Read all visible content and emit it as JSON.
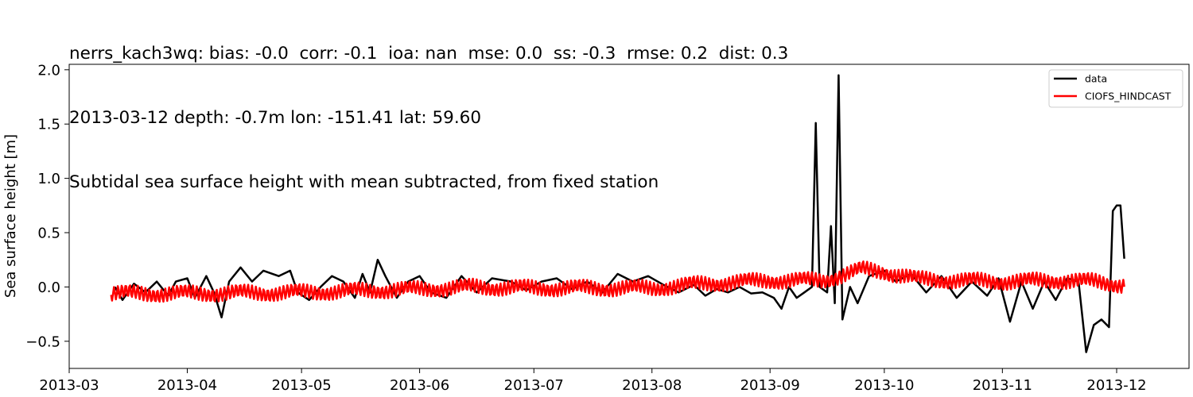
{
  "title_lines": [
    "nerrs_kach3wq: bias: -0.0  corr: -0.1  ioa: nan  mse: 0.0  ss: -0.3  rmse: 0.2  dist: 0.3",
    "2013-03-12 depth: -0.7m lon: -151.41 lat: 59.60",
    "Subtidal sea surface height with mean subtracted, from fixed station"
  ],
  "chart_data": {
    "type": "line",
    "title": "nerrs_kach3wq: bias: -0.0  corr: -0.1  ioa: nan  mse: 0.0  ss: -0.3  rmse: 0.2  dist: 0.3",
    "subtitle": "2013-03-12 depth: -0.7m lon: -151.41 lat: 59.60 | Subtidal sea surface height with mean subtracted, from fixed station",
    "xlabel": "",
    "ylabel": "Sea surface height [m]",
    "xlim": [
      "2013-03-01",
      "2013-12-20"
    ],
    "ylim": [
      -0.75,
      2.05
    ],
    "xticks": [
      "2013-03",
      "2013-04",
      "2013-05",
      "2013-06",
      "2013-07",
      "2013-08",
      "2013-09",
      "2013-10",
      "2013-11",
      "2013-12"
    ],
    "xtick_dates": [
      "2013-03-01",
      "2013-04-01",
      "2013-05-01",
      "2013-06-01",
      "2013-07-01",
      "2013-08-01",
      "2013-09-01",
      "2013-10-01",
      "2013-11-01",
      "2013-12-01"
    ],
    "yticks": [
      -0.5,
      0.0,
      0.5,
      1.0,
      1.5,
      2.0
    ],
    "ytick_labels": [
      "−0.5",
      "0.0",
      "0.5",
      "1.0",
      "1.5",
      "2.0"
    ],
    "grid": false,
    "legend_position": "top-right",
    "series": [
      {
        "name": "data",
        "color": "#000000",
        "style": "smooth, irregular",
        "points": [
          [
            "2013-03-13",
            0.0
          ],
          [
            "2013-03-15",
            -0.12
          ],
          [
            "2013-03-18",
            0.03
          ],
          [
            "2013-03-21",
            -0.05
          ],
          [
            "2013-03-24",
            0.05
          ],
          [
            "2013-03-27",
            -0.08
          ],
          [
            "2013-03-29",
            0.05
          ],
          [
            "2013-04-01",
            0.08
          ],
          [
            "2013-04-03",
            -0.1
          ],
          [
            "2013-04-06",
            0.1
          ],
          [
            "2013-04-08",
            -0.05
          ],
          [
            "2013-04-10",
            -0.28
          ],
          [
            "2013-04-12",
            0.05
          ],
          [
            "2013-04-15",
            0.18
          ],
          [
            "2013-04-18",
            0.05
          ],
          [
            "2013-04-21",
            0.15
          ],
          [
            "2013-04-25",
            0.1
          ],
          [
            "2013-04-28",
            0.15
          ],
          [
            "2013-04-30",
            -0.05
          ],
          [
            "2013-05-03",
            -0.12
          ],
          [
            "2013-05-06",
            0.0
          ],
          [
            "2013-05-09",
            0.1
          ],
          [
            "2013-05-12",
            0.05
          ],
          [
            "2013-05-15",
            -0.1
          ],
          [
            "2013-05-17",
            0.12
          ],
          [
            "2013-05-19",
            -0.05
          ],
          [
            "2013-05-21",
            0.25
          ],
          [
            "2013-05-23",
            0.1
          ],
          [
            "2013-05-26",
            -0.1
          ],
          [
            "2013-05-29",
            0.05
          ],
          [
            "2013-06-01",
            0.1
          ],
          [
            "2013-06-04",
            -0.05
          ],
          [
            "2013-06-08",
            -0.1
          ],
          [
            "2013-06-12",
            0.1
          ],
          [
            "2013-06-16",
            -0.05
          ],
          [
            "2013-06-20",
            0.08
          ],
          [
            "2013-06-25",
            0.05
          ],
          [
            "2013-06-29",
            -0.03
          ],
          [
            "2013-07-03",
            0.05
          ],
          [
            "2013-07-07",
            0.08
          ],
          [
            "2013-07-11",
            -0.02
          ],
          [
            "2013-07-15",
            0.05
          ],
          [
            "2013-07-19",
            -0.05
          ],
          [
            "2013-07-23",
            0.12
          ],
          [
            "2013-07-27",
            0.05
          ],
          [
            "2013-07-31",
            0.1
          ],
          [
            "2013-08-04",
            0.02
          ],
          [
            "2013-08-08",
            -0.05
          ],
          [
            "2013-08-12",
            0.02
          ],
          [
            "2013-08-15",
            -0.08
          ],
          [
            "2013-08-18",
            -0.02
          ],
          [
            "2013-08-21",
            -0.05
          ],
          [
            "2013-08-24",
            0.0
          ],
          [
            "2013-08-27",
            -0.06
          ],
          [
            "2013-08-30",
            -0.05
          ],
          [
            "2013-09-02",
            -0.1
          ],
          [
            "2013-09-04",
            -0.2
          ],
          [
            "2013-09-06",
            0.0
          ],
          [
            "2013-09-08",
            -0.1
          ],
          [
            "2013-09-10",
            -0.05
          ],
          [
            "2013-09-12",
            0.0
          ],
          [
            "2013-09-13",
            1.51
          ],
          [
            "2013-09-14",
            0.0
          ],
          [
            "2013-09-16",
            -0.05
          ],
          [
            "2013-09-17",
            0.56
          ],
          [
            "2013-09-18",
            -0.15
          ],
          [
            "2013-09-19",
            1.95
          ],
          [
            "2013-09-20",
            -0.3
          ],
          [
            "2013-09-22",
            0.0
          ],
          [
            "2013-09-24",
            -0.15
          ],
          [
            "2013-09-27",
            0.1
          ],
          [
            "2013-10-01",
            0.15
          ],
          [
            "2013-10-04",
            0.05
          ],
          [
            "2013-10-08",
            0.12
          ],
          [
            "2013-10-12",
            -0.05
          ],
          [
            "2013-10-16",
            0.1
          ],
          [
            "2013-10-20",
            -0.1
          ],
          [
            "2013-10-24",
            0.05
          ],
          [
            "2013-10-28",
            -0.08
          ],
          [
            "2013-10-31",
            0.08
          ],
          [
            "2013-11-03",
            -0.32
          ],
          [
            "2013-11-06",
            0.05
          ],
          [
            "2013-11-09",
            -0.2
          ],
          [
            "2013-11-12",
            0.05
          ],
          [
            "2013-11-15",
            -0.12
          ],
          [
            "2013-11-18",
            0.08
          ],
          [
            "2013-11-21",
            0.05
          ],
          [
            "2013-11-23",
            -0.6
          ],
          [
            "2013-11-25",
            -0.35
          ],
          [
            "2013-11-27",
            -0.3
          ],
          [
            "2013-11-29",
            -0.37
          ],
          [
            "2013-11-30",
            0.7
          ],
          [
            "2013-12-01",
            0.75
          ],
          [
            "2013-12-02",
            0.75
          ],
          [
            "2013-12-03",
            0.26
          ]
        ]
      },
      {
        "name": "CIOFS_HINDCAST",
        "color": "#ff0000",
        "style": "tidal oscillation (~amp 0.06 m) around slowly varying mean",
        "envelope_mean": [
          [
            "2013-03-12",
            -0.06
          ],
          [
            "2013-04-01",
            -0.06
          ],
          [
            "2013-05-01",
            -0.05
          ],
          [
            "2013-06-01",
            -0.02
          ],
          [
            "2013-06-15",
            0.0
          ],
          [
            "2013-07-01",
            -0.01
          ],
          [
            "2013-08-01",
            -0.01
          ],
          [
            "2013-08-15",
            0.03
          ],
          [
            "2013-09-01",
            0.06
          ],
          [
            "2013-09-15",
            0.06
          ],
          [
            "2013-09-25",
            0.16
          ],
          [
            "2013-10-01",
            0.14
          ],
          [
            "2013-10-10",
            0.07
          ],
          [
            "2013-11-01",
            0.05
          ],
          [
            "2013-11-15",
            0.06
          ],
          [
            "2013-11-25",
            0.05
          ],
          [
            "2013-12-03",
            0.02
          ]
        ]
      }
    ]
  }
}
